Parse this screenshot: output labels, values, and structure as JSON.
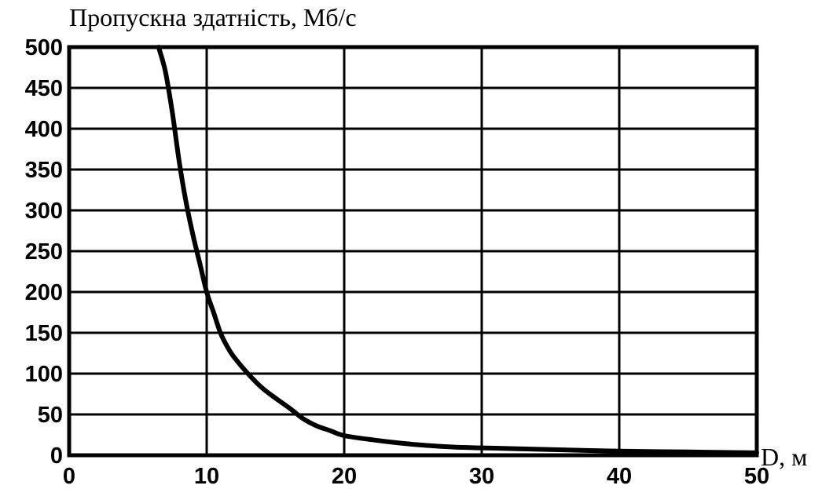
{
  "chart_data": {
    "type": "line",
    "ylabel": "Пропускна здатність, Мб/с",
    "xlabel": "D, м",
    "xlim": [
      0,
      50
    ],
    "ylim": [
      0,
      500
    ],
    "x_ticks": [
      "0",
      "10",
      "20",
      "30",
      "40",
      "50"
    ],
    "y_ticks": [
      "0",
      "50",
      "100",
      "150",
      "200",
      "250",
      "300",
      "350",
      "400",
      "450",
      "500"
    ],
    "grid": true,
    "series": [
      {
        "x": [
          6.5,
          7,
          7.5,
          8,
          8.5,
          9,
          9.5,
          10,
          10.5,
          11,
          11.5,
          12,
          13,
          14,
          15,
          16,
          17,
          18,
          19,
          20,
          22,
          24,
          26,
          28,
          30,
          35,
          40,
          45,
          50
        ],
        "values": [
          500,
          470,
          420,
          360,
          310,
          270,
          235,
          200,
          175,
          150,
          133,
          120,
          100,
          83,
          70,
          58,
          45,
          36,
          30,
          24,
          19,
          15,
          12,
          10,
          9,
          7,
          5,
          4,
          3
        ]
      }
    ]
  }
}
